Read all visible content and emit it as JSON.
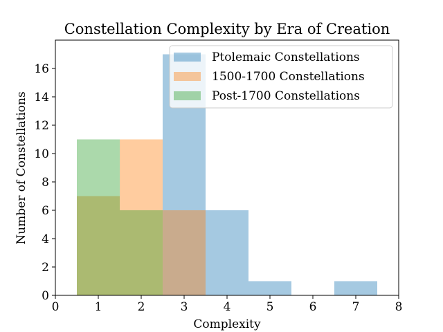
{
  "chart_data": {
    "type": "bar",
    "title": "Constellation Complexity by Era of Creation",
    "xlabel": "Complexity",
    "ylabel": "Number of Constellations",
    "xlim": [
      0,
      8
    ],
    "ylim": [
      0,
      18
    ],
    "x_ticks": [
      0,
      1,
      2,
      3,
      4,
      5,
      6,
      7,
      8
    ],
    "y_ticks": [
      0,
      2,
      4,
      6,
      8,
      10,
      12,
      14,
      16
    ],
    "grid": false,
    "legend_position": "top-right",
    "bin_edges": [
      0.5,
      1.5,
      2.5,
      3.5,
      4.5,
      5.5,
      6.5,
      7.5
    ],
    "series": [
      {
        "name": "Ptolemaic Constellations",
        "color": "#1f77b4",
        "opacity": 0.4,
        "values": [
          0,
          0,
          17,
          6,
          1,
          0,
          1
        ]
      },
      {
        "name": "1500-1700 Constellations",
        "color": "#ff7f0e",
        "opacity": 0.4,
        "values": [
          7,
          11,
          6,
          0,
          0,
          0,
          0
        ]
      },
      {
        "name": "Post-1700 Constellations",
        "color": "#2ca02c",
        "opacity": 0.4,
        "values": [
          11,
          6,
          0,
          0,
          0,
          0,
          0
        ]
      }
    ]
  }
}
